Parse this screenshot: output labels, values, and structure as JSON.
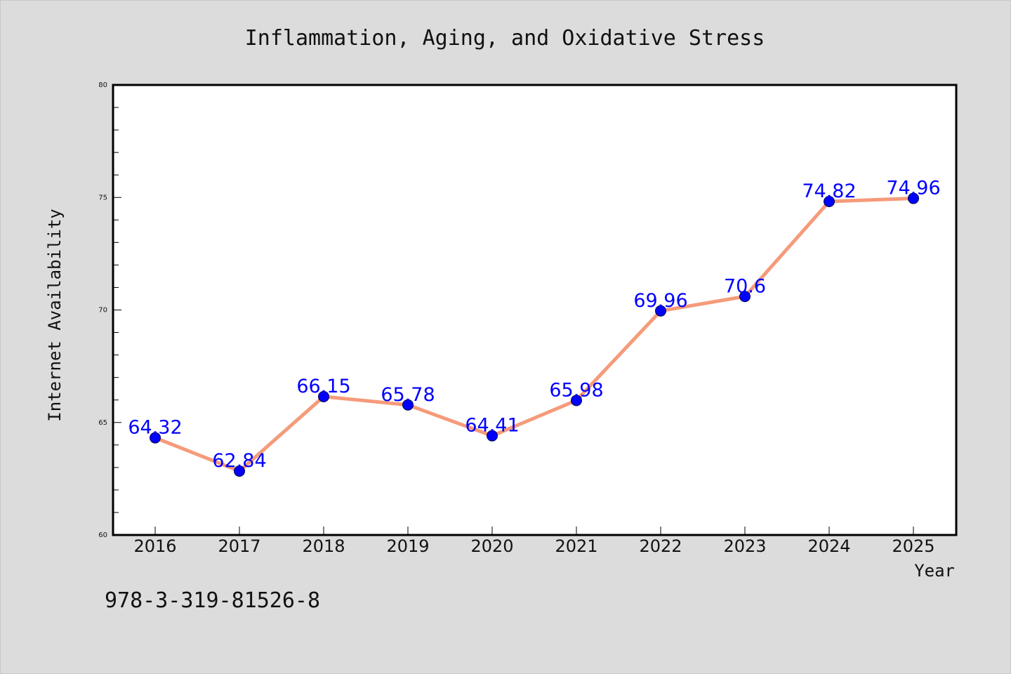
{
  "figure": {
    "background": "#dcdcdc",
    "plot_background": "#ffffff",
    "line_color": "#f59b7a",
    "marker_color": "#0000ff",
    "label_color": "#0000ff",
    "footer_text": "978-3-319-81526-8"
  },
  "chart_data": {
    "type": "line",
    "title": "Inflammation, Aging, and Oxidative Stress",
    "xlabel": "Year",
    "ylabel": "Internet Availability",
    "categories": [
      "2016",
      "2017",
      "2018",
      "2019",
      "2020",
      "2021",
      "2022",
      "2023",
      "2024",
      "2025"
    ],
    "series": [
      {
        "values": [
          64.32,
          62.84,
          66.15,
          65.78,
          64.41,
          65.98,
          69.96,
          70.6,
          74.82,
          74.96
        ],
        "labels": [
          "64.32",
          "62.84",
          "66.15",
          "65.78",
          "64.41",
          "65.98",
          "69.96",
          "70.6",
          "74.82",
          "74.96"
        ]
      }
    ],
    "ylim": [
      60,
      80
    ],
    "yticks": [
      "60",
      "65",
      "70",
      "75",
      "80"
    ],
    "ytick_values": [
      60,
      65,
      70,
      75,
      80
    ],
    "minor_tick_step": 1,
    "grid": false,
    "legend": "none"
  }
}
